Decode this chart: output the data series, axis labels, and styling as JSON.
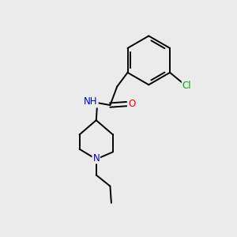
{
  "background_color": "#ebebeb",
  "bond_color": "#000000",
  "atom_colors": {
    "N": "#0000cc",
    "O": "#ff0000",
    "Cl": "#00aa00",
    "H": "#000000"
  },
  "figsize": [
    3.0,
    3.0
  ],
  "dpi": 100,
  "bond_lw": 1.4,
  "fontsize": 8.5
}
